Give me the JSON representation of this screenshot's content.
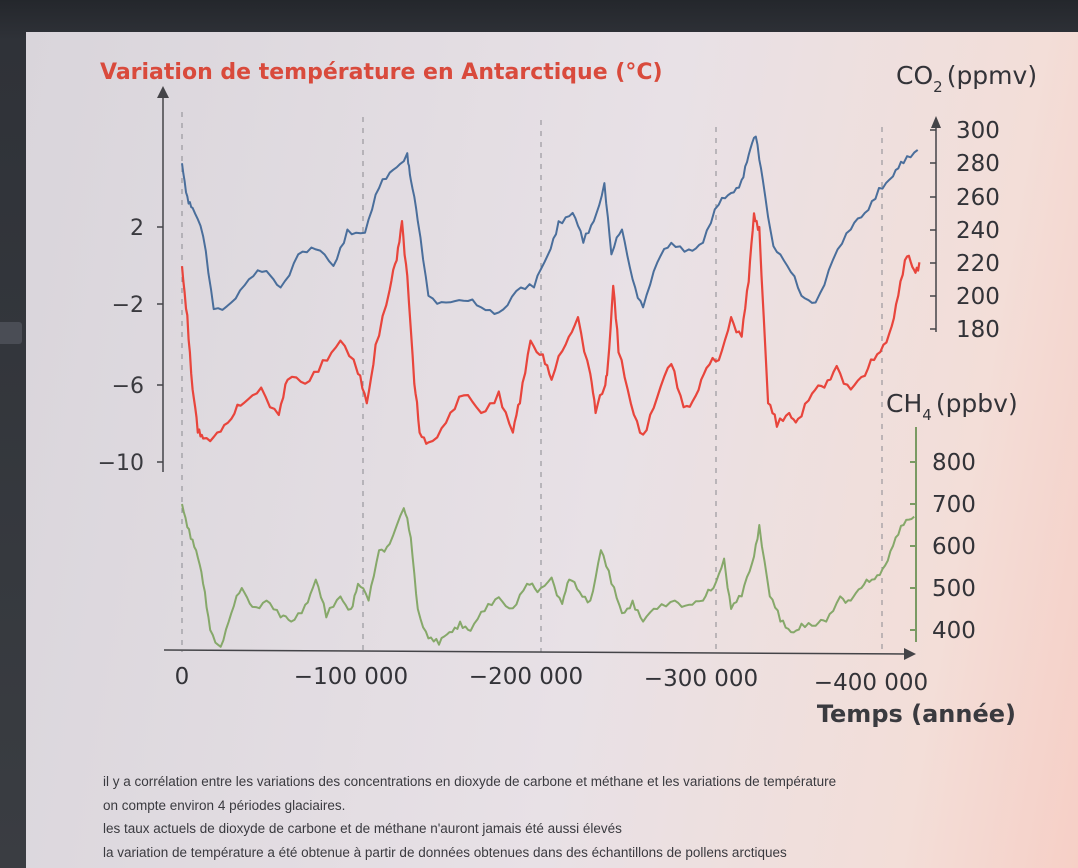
{
  "colors": {
    "temperature": "#e8453c",
    "co2": "#4a6e9b",
    "ch4": "#86a86a",
    "axis_dark": "#444448",
    "axis_green": "#7a9a63",
    "title": "#d94a3c"
  },
  "chart_data": {
    "type": "line",
    "title": "Variation de température en Antarctique (°C)",
    "xlabel": "Temps (année)",
    "x_ticks": [
      "0",
      "−100 000",
      "−200 000",
      "−300 000",
      "−400 000"
    ],
    "xlim": [
      0,
      -420000
    ],
    "left_axis": {
      "label": "Variation de température en Antarctique (°C)",
      "ticks": [
        "2",
        "−2",
        "−6",
        "−10"
      ],
      "tick_values": [
        2,
        -2,
        -6,
        -10
      ]
    },
    "co2_axis": {
      "label_main": "CO",
      "label_sub": "2",
      "label_unit": "(ppmv)",
      "ticks": [
        "300",
        "280",
        "260",
        "240",
        "220",
        "200",
        "180"
      ],
      "tick_values": [
        300,
        280,
        260,
        240,
        220,
        200,
        180
      ]
    },
    "ch4_axis": {
      "label_main": "CH",
      "label_sub": "4",
      "label_unit": "(ppbv)",
      "ticks": [
        "800",
        "700",
        "600",
        "500",
        "400"
      ],
      "tick_values": [
        800,
        700,
        600,
        500,
        400
      ]
    },
    "series": [
      {
        "key": "temperature",
        "axis": "temperature",
        "points": [
          [
            0,
            0
          ],
          [
            -3000,
            -2.5
          ],
          [
            -6000,
            -6.3
          ],
          [
            -9000,
            -8.5
          ],
          [
            -12000,
            -8.8
          ],
          [
            -20000,
            -8.5
          ],
          [
            -28000,
            -7.8
          ],
          [
            -35000,
            -7
          ],
          [
            -45000,
            -6.2
          ],
          [
            -55000,
            -7.6
          ],
          [
            -60000,
            -5.8
          ],
          [
            -70000,
            -6
          ],
          [
            -80000,
            -4.8
          ],
          [
            -90000,
            -3.8
          ],
          [
            -100000,
            -5.5
          ],
          [
            -105000,
            -7
          ],
          [
            -110000,
            -4
          ],
          [
            -118000,
            -1.2
          ],
          [
            -122000,
            0.3
          ],
          [
            -125000,
            2.3
          ],
          [
            -128000,
            -0.5
          ],
          [
            -132000,
            -6
          ],
          [
            -135000,
            -8.5
          ],
          [
            -140000,
            -9
          ],
          [
            -150000,
            -8
          ],
          [
            -160000,
            -6.6
          ],
          [
            -170000,
            -7.5
          ],
          [
            -180000,
            -6.4
          ],
          [
            -188000,
            -8.5
          ],
          [
            -192000,
            -7
          ],
          [
            -198000,
            -3.8
          ],
          [
            -205000,
            -4.5
          ],
          [
            -210000,
            -5.8
          ],
          [
            -218000,
            -4
          ],
          [
            -225000,
            -2.6
          ],
          [
            -232000,
            -5.5
          ],
          [
            -235000,
            -7.5
          ],
          [
            -240000,
            -6.2
          ],
          [
            -242000,
            -5
          ],
          [
            -245000,
            -1
          ],
          [
            -248000,
            -4.4
          ],
          [
            -255000,
            -7
          ],
          [
            -262000,
            -8.6
          ],
          [
            -270000,
            -6.7
          ],
          [
            -278000,
            -5
          ],
          [
            -285000,
            -7.2
          ],
          [
            -292000,
            -6.6
          ],
          [
            -298000,
            -5.2
          ],
          [
            -305000,
            -4.8
          ],
          [
            -312000,
            -2.6
          ],
          [
            -318000,
            -3.6
          ],
          [
            -322000,
            -0.8
          ],
          [
            -325000,
            2.7
          ],
          [
            -328000,
            2
          ],
          [
            -333000,
            -7
          ],
          [
            -338000,
            -8.2
          ],
          [
            -345000,
            -7.5
          ],
          [
            -350000,
            -7.8
          ],
          [
            -358000,
            -6.5
          ],
          [
            -365000,
            -6.2
          ],
          [
            -372000,
            -5.1
          ],
          [
            -380000,
            -6.3
          ],
          [
            -388000,
            -5.6
          ],
          [
            -395000,
            -4.5
          ],
          [
            -402000,
            -3.4
          ],
          [
            -407000,
            -1.5
          ],
          [
            -412000,
            0.5
          ],
          [
            -416000,
            -0.2
          ],
          [
            -419000,
            0.2
          ]
        ]
      },
      {
        "key": "co2",
        "axis": "co2",
        "points": [
          [
            0,
            280
          ],
          [
            -3000,
            260
          ],
          [
            -6000,
            253
          ],
          [
            -12000,
            236
          ],
          [
            -18000,
            192
          ],
          [
            -28000,
            196
          ],
          [
            -38000,
            210
          ],
          [
            -48000,
            215
          ],
          [
            -56000,
            205
          ],
          [
            -66000,
            225
          ],
          [
            -76000,
            228
          ],
          [
            -86000,
            218
          ],
          [
            -94000,
            240
          ],
          [
            -104000,
            238
          ],
          [
            -112000,
            265
          ],
          [
            -120000,
            276
          ],
          [
            -128000,
            286
          ],
          [
            -130000,
            270
          ],
          [
            -134000,
            245
          ],
          [
            -140000,
            200
          ],
          [
            -150000,
            196
          ],
          [
            -160000,
            197
          ],
          [
            -170000,
            193
          ],
          [
            -180000,
            190
          ],
          [
            -190000,
            203
          ],
          [
            -200000,
            205
          ],
          [
            -208000,
            225
          ],
          [
            -214000,
            245
          ],
          [
            -222000,
            250
          ],
          [
            -228000,
            232
          ],
          [
            -234000,
            245
          ],
          [
            -240000,
            268
          ],
          [
            -244000,
            225
          ],
          [
            -250000,
            240
          ],
          [
            -256000,
            210
          ],
          [
            -262000,
            193
          ],
          [
            -270000,
            220
          ],
          [
            -278000,
            232
          ],
          [
            -288000,
            228
          ],
          [
            -296000,
            232
          ],
          [
            -305000,
            255
          ],
          [
            -312000,
            262
          ],
          [
            -318000,
            270
          ],
          [
            -322000,
            285
          ],
          [
            -326000,
            296
          ],
          [
            -330000,
            270
          ],
          [
            -336000,
            230
          ],
          [
            -344000,
            218
          ],
          [
            -352000,
            200
          ],
          [
            -360000,
            196
          ],
          [
            -370000,
            222
          ],
          [
            -380000,
            240
          ],
          [
            -388000,
            250
          ],
          [
            -396000,
            265
          ],
          [
            -404000,
            272
          ],
          [
            -410000,
            280
          ],
          [
            -418000,
            288
          ]
        ]
      },
      {
        "key": "ch4",
        "axis": "ch4",
        "points": [
          [
            0,
            700
          ],
          [
            -4000,
            640
          ],
          [
            -8000,
            590
          ],
          [
            -12000,
            510
          ],
          [
            -16000,
            400
          ],
          [
            -22000,
            360
          ],
          [
            -28000,
            440
          ],
          [
            -34000,
            500
          ],
          [
            -40000,
            455
          ],
          [
            -48000,
            470
          ],
          [
            -56000,
            430
          ],
          [
            -62000,
            420
          ],
          [
            -70000,
            460
          ],
          [
            -76000,
            520
          ],
          [
            -82000,
            430
          ],
          [
            -90000,
            480
          ],
          [
            -96000,
            450
          ],
          [
            -100000,
            510
          ],
          [
            -106000,
            470
          ],
          [
            -112000,
            590
          ],
          [
            -118000,
            605
          ],
          [
            -126000,
            690
          ],
          [
            -130000,
            620
          ],
          [
            -134000,
            450
          ],
          [
            -140000,
            380
          ],
          [
            -146000,
            365
          ],
          [
            -152000,
            395
          ],
          [
            -158000,
            420
          ],
          [
            -164000,
            398
          ],
          [
            -172000,
            445
          ],
          [
            -180000,
            478
          ],
          [
            -188000,
            452
          ],
          [
            -196000,
            510
          ],
          [
            -202000,
            490
          ],
          [
            -210000,
            525
          ],
          [
            -216000,
            462
          ],
          [
            -220000,
            520
          ],
          [
            -226000,
            490
          ],
          [
            -232000,
            470
          ],
          [
            -238000,
            590
          ],
          [
            -244000,
            510
          ],
          [
            -250000,
            440
          ],
          [
            -256000,
            470
          ],
          [
            -262000,
            420
          ],
          [
            -270000,
            450
          ],
          [
            -280000,
            470
          ],
          [
            -288000,
            460
          ],
          [
            -296000,
            470
          ],
          [
            -302000,
            500
          ],
          [
            -308000,
            570
          ],
          [
            -312000,
            450
          ],
          [
            -318000,
            480
          ],
          [
            -324000,
            560
          ],
          [
            -328000,
            650
          ],
          [
            -334000,
            480
          ],
          [
            -340000,
            420
          ],
          [
            -346000,
            395
          ],
          [
            -352000,
            415
          ],
          [
            -360000,
            410
          ],
          [
            -366000,
            420
          ],
          [
            -374000,
            480
          ],
          [
            -380000,
            470
          ],
          [
            -386000,
            500
          ],
          [
            -392000,
            520
          ],
          [
            -398000,
            545
          ],
          [
            -404000,
            600
          ],
          [
            -410000,
            650
          ],
          [
            -416000,
            670
          ]
        ]
      }
    ],
    "grid": false,
    "legend": "none"
  },
  "notes": [
    "il y a corrélation entre les variations des concentrations en dioxyde de carbone et méthane et les variations de température",
    "on compte environ 4 périodes glaciaires.",
    "les taux actuels de dioxyde de carbone et de méthane n'auront jamais été aussi élevés",
    "la variation de température a été obtenue à partir de données obtenues dans des échantillons de pollens arctiques"
  ]
}
